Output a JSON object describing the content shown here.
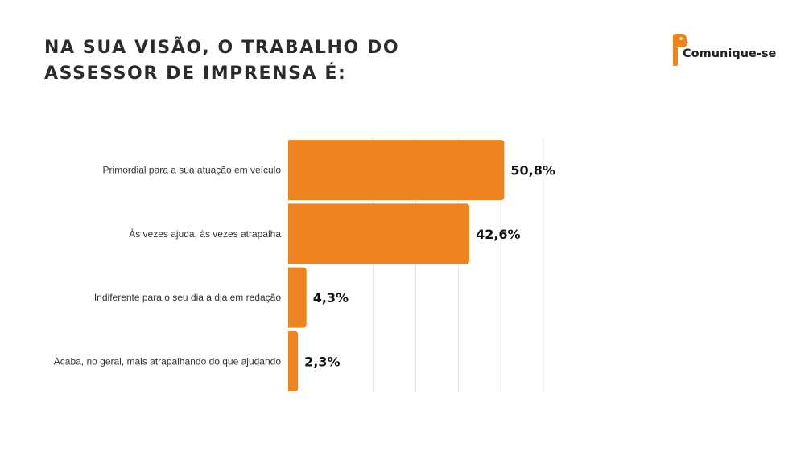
{
  "title_line1": "NA SUA VISÃO, O TRABALHO DO",
  "title_line2": "ASSESSOR DE IMPRENSA É:",
  "logo": {
    "text": "Comunique-se",
    "icon": "speech-bubble-logo-icon",
    "color": "#EE8322"
  },
  "chart_data": {
    "type": "bar",
    "orientation": "horizontal",
    "title": "NA SUA VISÃO, O TRABALHO DO ASSESSOR DE IMPRENSA É:",
    "categories": [
      "Primordial para a sua atuação em veículo",
      "Às vezes ajuda, às vezes atrapalha",
      "Indiferente para o seu dia a dia em redação",
      "Acaba, no geral, mais atrapalhando do que ajudando"
    ],
    "values": [
      50.8,
      42.6,
      4.3,
      2.3
    ],
    "value_labels": [
      "50,8%",
      "42,6%",
      "4,3%",
      "2,3%"
    ],
    "xlim": [
      0,
      60
    ],
    "grid": true,
    "bar_color": "#EE8322",
    "grid_color": "#E6E6E6"
  }
}
